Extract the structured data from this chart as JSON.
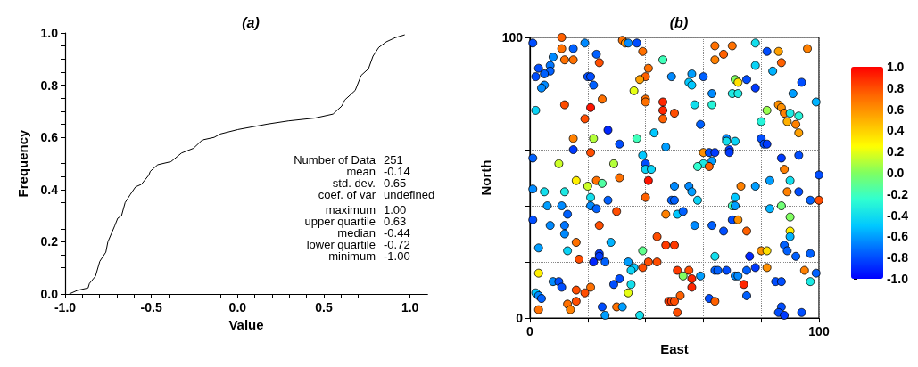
{
  "chart_data": [
    {
      "type": "line",
      "title": "(a)",
      "xlabel": "Value",
      "ylabel": "Frequency",
      "marker": "none",
      "grid": false,
      "color": "#000000",
      "x": [
        -0.976,
        -0.928,
        -0.867,
        -0.859,
        -0.824,
        -0.799,
        -0.764,
        -0.752,
        -0.713,
        -0.695,
        -0.673,
        -0.652,
        -0.623,
        -0.592,
        -0.558,
        -0.515,
        -0.506,
        -0.463,
        -0.386,
        -0.325,
        -0.256,
        -0.205,
        -0.136,
        -0.101,
        0.002,
        0.174,
        0.294,
        0.449,
        0.553,
        0.604,
        0.621,
        0.682,
        0.716,
        0.759,
        0.785,
        0.819,
        0.862,
        0.914,
        0.969
      ],
      "values": [
        0,
        0.014,
        0.023,
        0.04,
        0.068,
        0.125,
        0.16,
        0.2,
        0.26,
        0.29,
        0.3,
        0.35,
        0.38,
        0.41,
        0.42,
        0.455,
        0.47,
        0.495,
        0.507,
        0.54,
        0.558,
        0.59,
        0.6,
        0.613,
        0.63,
        0.651,
        0.663,
        0.674,
        0.689,
        0.72,
        0.743,
        0.78,
        0.837,
        0.863,
        0.911,
        0.945,
        0.966,
        0.982,
        0.993
      ],
      "xlim": [
        -1,
        1.1
      ],
      "ylim": [
        0,
        1
      ],
      "xticks": [
        {
          "value": -1,
          "label": "-1.0"
        },
        {
          "value": -0.9,
          "label": null
        },
        {
          "value": -0.8,
          "label": null
        },
        {
          "value": -0.7,
          "label": null
        },
        {
          "value": -0.6,
          "label": null
        },
        {
          "value": -0.5,
          "label": "-0.5"
        },
        {
          "value": -0.4,
          "label": null
        },
        {
          "value": -0.3,
          "label": null
        },
        {
          "value": -0.2,
          "label": null
        },
        {
          "value": -0.1,
          "label": null
        },
        {
          "value": 0,
          "label": "0.0"
        },
        {
          "value": 0.1,
          "label": null
        },
        {
          "value": 0.2,
          "label": null
        },
        {
          "value": 0.3,
          "label": null
        },
        {
          "value": 0.4,
          "label": null
        },
        {
          "value": 0.5,
          "label": "0.5"
        },
        {
          "value": 0.6,
          "label": null
        },
        {
          "value": 0.7,
          "label": null
        },
        {
          "value": 0.8,
          "label": null
        },
        {
          "value": 0.9,
          "label": null
        },
        {
          "value": 1,
          "label": "1.0"
        }
      ],
      "yticks": [
        {
          "value": 0,
          "label": "0.0"
        },
        {
          "value": 0.05,
          "label": null
        },
        {
          "value": 0.1,
          "label": null
        },
        {
          "value": 0.15,
          "label": null
        },
        {
          "value": 0.2,
          "label": "0.2"
        },
        {
          "value": 0.25,
          "label": null
        },
        {
          "value": 0.3,
          "label": null
        },
        {
          "value": 0.35,
          "label": null
        },
        {
          "value": 0.4,
          "label": "0.4"
        },
        {
          "value": 0.45,
          "label": null
        },
        {
          "value": 0.5,
          "label": null
        },
        {
          "value": 0.55,
          "label": null
        },
        {
          "value": 0.6,
          "label": "0.6"
        },
        {
          "value": 0.65,
          "label": null
        },
        {
          "value": 0.7,
          "label": null
        },
        {
          "value": 0.75,
          "label": null
        },
        {
          "value": 0.8,
          "label": "0.8"
        },
        {
          "value": 0.85,
          "label": null
        },
        {
          "value": 0.9,
          "label": null
        },
        {
          "value": 0.95,
          "label": null
        },
        {
          "value": 1,
          "label": "1.0"
        }
      ],
      "annotations": [
        "Number of Data 251",
        "mean -0.14",
        "std. dev. 0.65",
        "coef. of var undefined",
        "maximum 1.00",
        "upper quartile 0.63",
        "median -0.44",
        "lower quartile -0.72",
        "minimum -1.00"
      ]
    },
    {
      "type": "scatter",
      "title": "(b)",
      "xlabel": "East",
      "ylabel": "North",
      "grid": true,
      "marker": "circle",
      "x": [
        1,
        11,
        19,
        32,
        33,
        34,
        37,
        11,
        15,
        39,
        8,
        12,
        15,
        23,
        24,
        46,
        3,
        7,
        7,
        5,
        2,
        20,
        21,
        22,
        41,
        40,
        38,
        49,
        5,
        4,
        36,
        25,
        40,
        40,
        46,
        2,
        12,
        21,
        46,
        50,
        46,
        19,
        27,
        43,
        15,
        22,
        37,
        31,
        47,
        15,
        1,
        21,
        39,
        10,
        29,
        40,
        40,
        42,
        16,
        20,
        23,
        25,
        31,
        41,
        50,
        64,
        70,
        67,
        64,
        78,
        82,
        86,
        96,
        87,
        78,
        84,
        56,
        55,
        56,
        60,
        71,
        72,
        75,
        78,
        94,
        63,
        70,
        72,
        91,
        99,
        57,
        63,
        82,
        86,
        87,
        88,
        90,
        93,
        89,
        92,
        93,
        80,
        59,
        68,
        68,
        71,
        80,
        81,
        82,
        69,
        69,
        60,
        62,
        64,
        63,
        60,
        58,
        62,
        87,
        93,
        88,
        100,
        83,
        90,
        55,
        73,
        78,
        1,
        5,
        12,
        21,
        27,
        40,
        49,
        6,
        11,
        21,
        23,
        1,
        13,
        30,
        47,
        7,
        12,
        12,
        24,
        16,
        3,
        13,
        28,
        44,
        47,
        39,
        17,
        24,
        24,
        22,
        26,
        34,
        36,
        35,
        39,
        41,
        44,
        3,
        8,
        10,
        11,
        31,
        29,
        35,
        34,
        2,
        3,
        4,
        16,
        21,
        19,
        16,
        13,
        14,
        3,
        25,
        26,
        30,
        32,
        38,
        48,
        49,
        50,
        56,
        89,
        93,
        71,
        50,
        58,
        97,
        100,
        70,
        71,
        87,
        83,
        51,
        53,
        70,
        72,
        90,
        57,
        63,
        67,
        75,
        90,
        90,
        50,
        88,
        89,
        92,
        97,
        80,
        82,
        64,
        76,
        51,
        55,
        53,
        56,
        56,
        59,
        64,
        65,
        68,
        71,
        72,
        75,
        78,
        82,
        74,
        75,
        85,
        87,
        95,
        99,
        97,
        52,
        62,
        64,
        51,
        87,
        86,
        88,
        94
      ],
      "values": [
        98,
        100,
        98,
        99,
        98,
        98,
        98,
        96,
        96,
        95,
        93,
        92,
        92,
        94,
        91,
        92,
        89,
        90,
        88,
        87,
        86,
        86,
        86,
        83,
        89,
        86,
        85,
        86,
        83,
        82,
        81,
        78,
        78,
        77,
        77,
        74,
        76,
        75,
        74,
        73,
        71,
        71,
        67,
        66,
        64,
        64,
        64,
        62,
        61,
        60,
        57,
        59,
        58,
        55,
        55,
        55,
        53,
        53,
        49,
        47,
        49,
        48,
        50,
        49,
        47,
        97,
        97,
        94,
        92,
        98,
        95,
        95,
        96,
        91,
        90,
        88,
        87,
        84,
        83,
        86,
        85,
        84,
        85,
        82,
        84,
        80,
        80,
        80,
        80,
        77,
        76,
        76,
        74,
        76,
        75,
        73,
        73,
        72,
        70,
        69,
        66,
        70,
        69,
        64,
        63,
        63,
        64,
        62,
        62,
        60,
        59,
        59,
        59,
        59,
        56,
        55,
        54,
        54,
        57,
        58,
        53,
        51,
        49,
        49,
        47,
        47,
        47,
        46,
        45,
        45,
        43,
        42,
        43,
        42,
        40,
        40,
        40,
        39,
        35,
        37,
        38,
        37,
        33,
        33,
        30,
        33,
        27,
        25,
        24,
        27,
        29,
        26,
        24,
        21,
        23,
        22,
        20,
        20,
        20,
        18,
        17,
        18,
        20,
        20,
        16,
        13,
        13,
        11,
        14,
        12,
        12,
        9,
        9,
        8,
        7,
        10,
        11,
        9,
        6,
        5,
        3,
        3,
        4,
        1,
        4,
        4,
        1,
        6,
        6,
        6,
        45,
        45,
        45,
        43,
        42,
        42,
        42,
        42,
        40,
        40,
        40,
        39,
        37,
        38,
        35,
        35,
        36,
        33,
        33,
        31,
        31,
        31,
        29,
        26,
        26,
        24,
        22,
        23,
        24,
        24,
        22,
        22,
        17,
        17,
        15,
        14,
        11,
        15,
        17,
        17,
        17,
        15,
        15,
        17,
        18,
        18,
        12,
        8,
        13,
        13,
        17,
        16,
        13,
        8,
        7,
        6,
        2,
        4,
        2,
        1,
        2
      ],
      "cvalues": [
        -0.8,
        0.75,
        -0.65,
        0.7,
        0.6,
        -0.65,
        -0.8,
        0.7,
        -0.75,
        0.7,
        -0.65,
        0.7,
        0.7,
        -0.75,
        0.8,
        -0.2,
        -0.8,
        -0.7,
        -0.75,
        -0.75,
        -0.8,
        -0.8,
        -0.8,
        -0.75,
        0.7,
        0.75,
        0.55,
        -0.65,
        -0.65,
        -0.65,
        0.2,
        0.7,
        0.7,
        0.7,
        0.9,
        -0.45,
        0.8,
        0.95,
        0.9,
        0.8,
        0.75,
        0.8,
        -0.9,
        -0.5,
        0.65,
        0.1,
        -0.2,
        -0.8,
        -0.6,
        -0.85,
        -0.75,
        0.8,
        -0.5,
        0.15,
        0.1,
        -0.8,
        -0.45,
        -0.45,
        0.3,
        0.15,
        0.7,
        -0.15,
        0.7,
        0.95,
        -0.65,
        0.7,
        0.7,
        0.75,
        0.65,
        -0.4,
        -0.8,
        0.55,
        0.65,
        0.75,
        -0.45,
        -0.55,
        -0.6,
        -0.5,
        -0.5,
        -0.75,
        0,
        0.35,
        -0.8,
        -0.85,
        -0.8,
        -0.65,
        -0.35,
        -0.35,
        -0.6,
        -0.55,
        -0.4,
        -0.3,
        0.05,
        0.6,
        0.6,
        0.65,
        -0.35,
        -0.3,
        0.5,
        0.65,
        0.55,
        -0.3,
        -0.75,
        -0.65,
        -0.4,
        -0.45,
        -0.8,
        -0.8,
        -0.85,
        -0.85,
        -0.85,
        0.6,
        -0.8,
        -0.85,
        -0.6,
        -0.35,
        -0.25,
        0.75,
        -0.85,
        -0.8,
        0.65,
        -0.8,
        -0.6,
        -0.4,
        -0.65,
        0.65,
        -0.6,
        -0.65,
        -0.4,
        -0.35,
        -0.4,
        -0.75,
        0.75,
        -0.75,
        -0.6,
        -0.65,
        -0.65,
        -0.75,
        -0.8,
        -0.75,
        0.8,
        0.65,
        -0.65,
        -0.7,
        -0.65,
        0.8,
        0.7,
        -0.6,
        -0.45,
        -0.55,
        0.8,
        0.85,
        -0.1,
        0.8,
        -0.85,
        -0.85,
        -0.9,
        -0.75,
        -0.6,
        -0.5,
        -0.45,
        0.8,
        0.8,
        0.8,
        0.3,
        -0.65,
        -0.8,
        -0.8,
        -0.8,
        -0.8,
        -0.4,
        0.2,
        -0.5,
        -0.65,
        -0.75,
        0.8,
        0.7,
        0.8,
        0.8,
        0.7,
        0.65,
        0.7,
        -0.8,
        -0.6,
        0.7,
        -0.6,
        -0.4,
        0.85,
        0.85,
        0.8,
        -0.6,
        0.65,
        -0.8,
        -0.5,
        -0.75,
        -0.45,
        -0.75,
        0.8,
        -0.2,
        -0.6,
        -0.05,
        -0.55,
        -0.5,
        -0.75,
        -0.8,
        0.6,
        0,
        -0.65,
        -0.75,
        -0.8,
        0.75,
        0.3,
        -0.55,
        0.85,
        -0.75,
        -0.75,
        -0.75,
        -0.75,
        0.6,
        0.35,
        -0.4,
        -0.9,
        0.85,
        0.8,
        0,
        0.9,
        0.9,
        -0.6,
        -0.75,
        -0.75,
        -0.8,
        -0.65,
        -0.65,
        -0.75,
        -0.85,
        0.6,
        0.9,
        -0.75,
        -0.8,
        -0.8,
        0.65,
        -0.75,
        -0.35,
        0.75,
        -0.8,
        0.75,
        0.8,
        -0.8,
        -0.8,
        -0.85,
        -0.8
      ],
      "xlim": [
        0,
        100
      ],
      "ylim": [
        0,
        100
      ],
      "xticks": [
        0,
        {
          "value": 20,
          "label": null
        },
        {
          "value": 40,
          "label": null
        },
        {
          "value": 60,
          "label": null
        },
        {
          "value": 80,
          "label": null
        },
        100
      ],
      "yticks": [
        0,
        {
          "value": 20,
          "label": null
        },
        {
          "value": 40,
          "label": null
        },
        {
          "value": 60,
          "label": null
        },
        {
          "value": 80,
          "label": null
        },
        100
      ],
      "clim": [
        -1,
        1
      ],
      "cticks": [
        {
          "value": -1,
          "label": "-1.0"
        },
        {
          "value": -0.8,
          "label": "-0.8"
        },
        {
          "value": -0.6,
          "label": "-0.6"
        },
        {
          "value": -0.4,
          "label": "-0.4"
        },
        {
          "value": -0.2,
          "label": "-0.2"
        },
        {
          "value": 0,
          "label": "0.0"
        },
        {
          "value": 0.2,
          "label": "0.2"
        },
        {
          "value": 0.4,
          "label": "0.4"
        },
        {
          "value": 0.6,
          "label": "0.6"
        },
        {
          "value": 0.8,
          "label": "0.8"
        },
        {
          "value": 1,
          "label": "1.0"
        }
      ]
    }
  ]
}
